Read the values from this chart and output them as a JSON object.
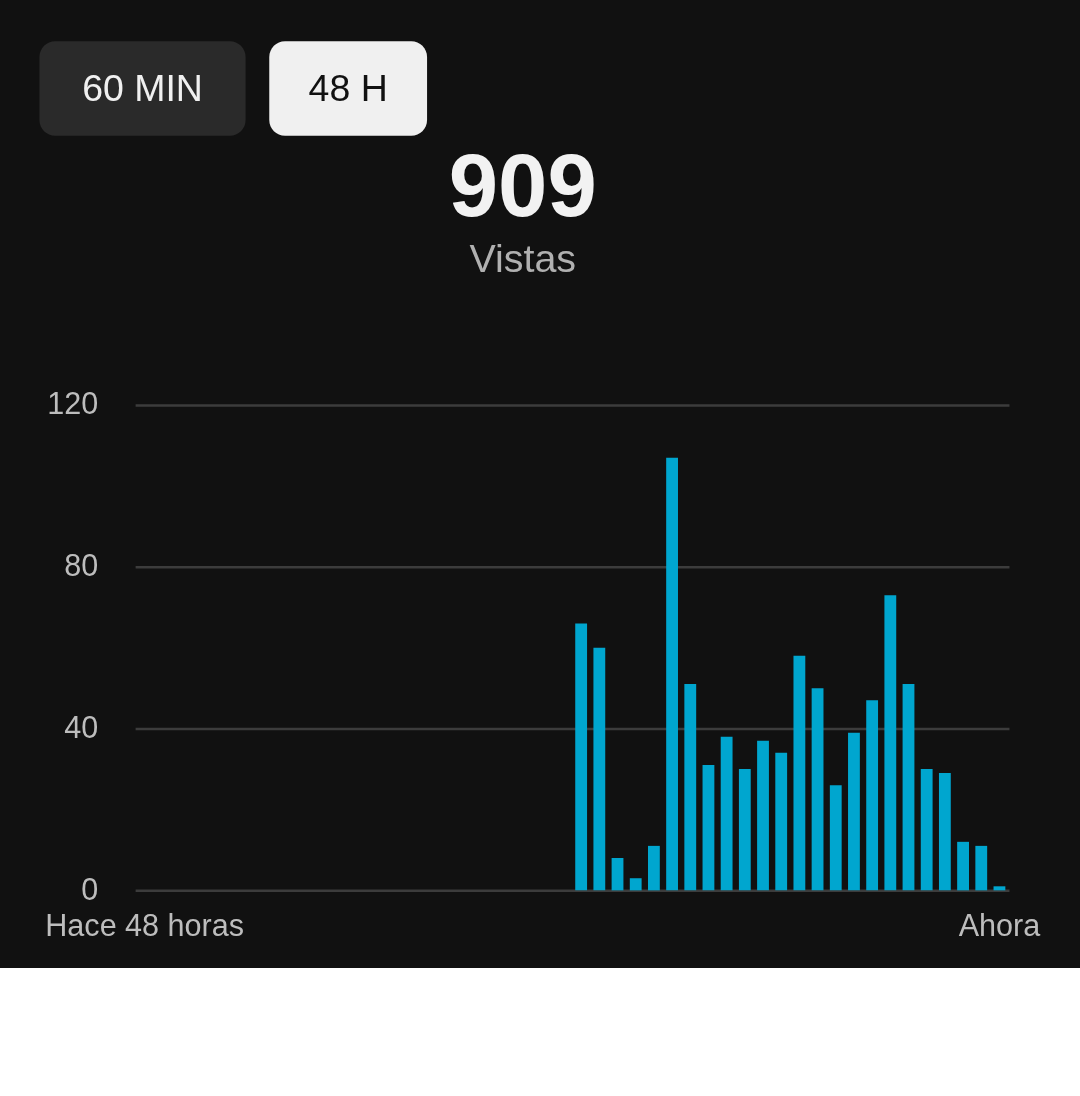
{
  "chart_data": {
    "type": "bar",
    "title": "909",
    "subtitle": "Vistas",
    "annotations": [
      "60 MIN",
      "48 H"
    ],
    "categories": [
      "Hace 48 horas",
      null,
      null,
      null,
      null,
      null,
      null,
      null,
      null,
      null,
      null,
      null,
      null,
      null,
      null,
      null,
      null,
      null,
      null,
      null,
      null,
      null,
      null,
      null,
      null,
      null,
      null,
      null,
      null,
      null,
      null,
      null,
      null,
      null,
      null,
      null,
      null,
      null,
      null,
      null,
      null,
      null,
      null,
      null,
      null,
      null,
      null,
      "Ahora"
    ],
    "values": [
      0,
      0,
      0,
      0,
      0,
      0,
      0,
      0,
      0,
      0,
      0,
      0,
      0,
      0,
      0,
      0,
      0,
      0,
      0,
      0,
      0,
      0,
      0,
      0,
      66,
      60,
      8,
      3,
      11,
      107,
      51,
      31,
      38,
      30,
      37,
      34,
      58,
      50,
      26,
      39,
      47,
      73,
      51,
      30,
      29,
      12,
      11,
      1
    ],
    "color": "#00a6cf",
    "ylim": [
      0,
      120
    ],
    "yticks": [
      0,
      40,
      80,
      120
    ],
    "grid": "y"
  }
}
